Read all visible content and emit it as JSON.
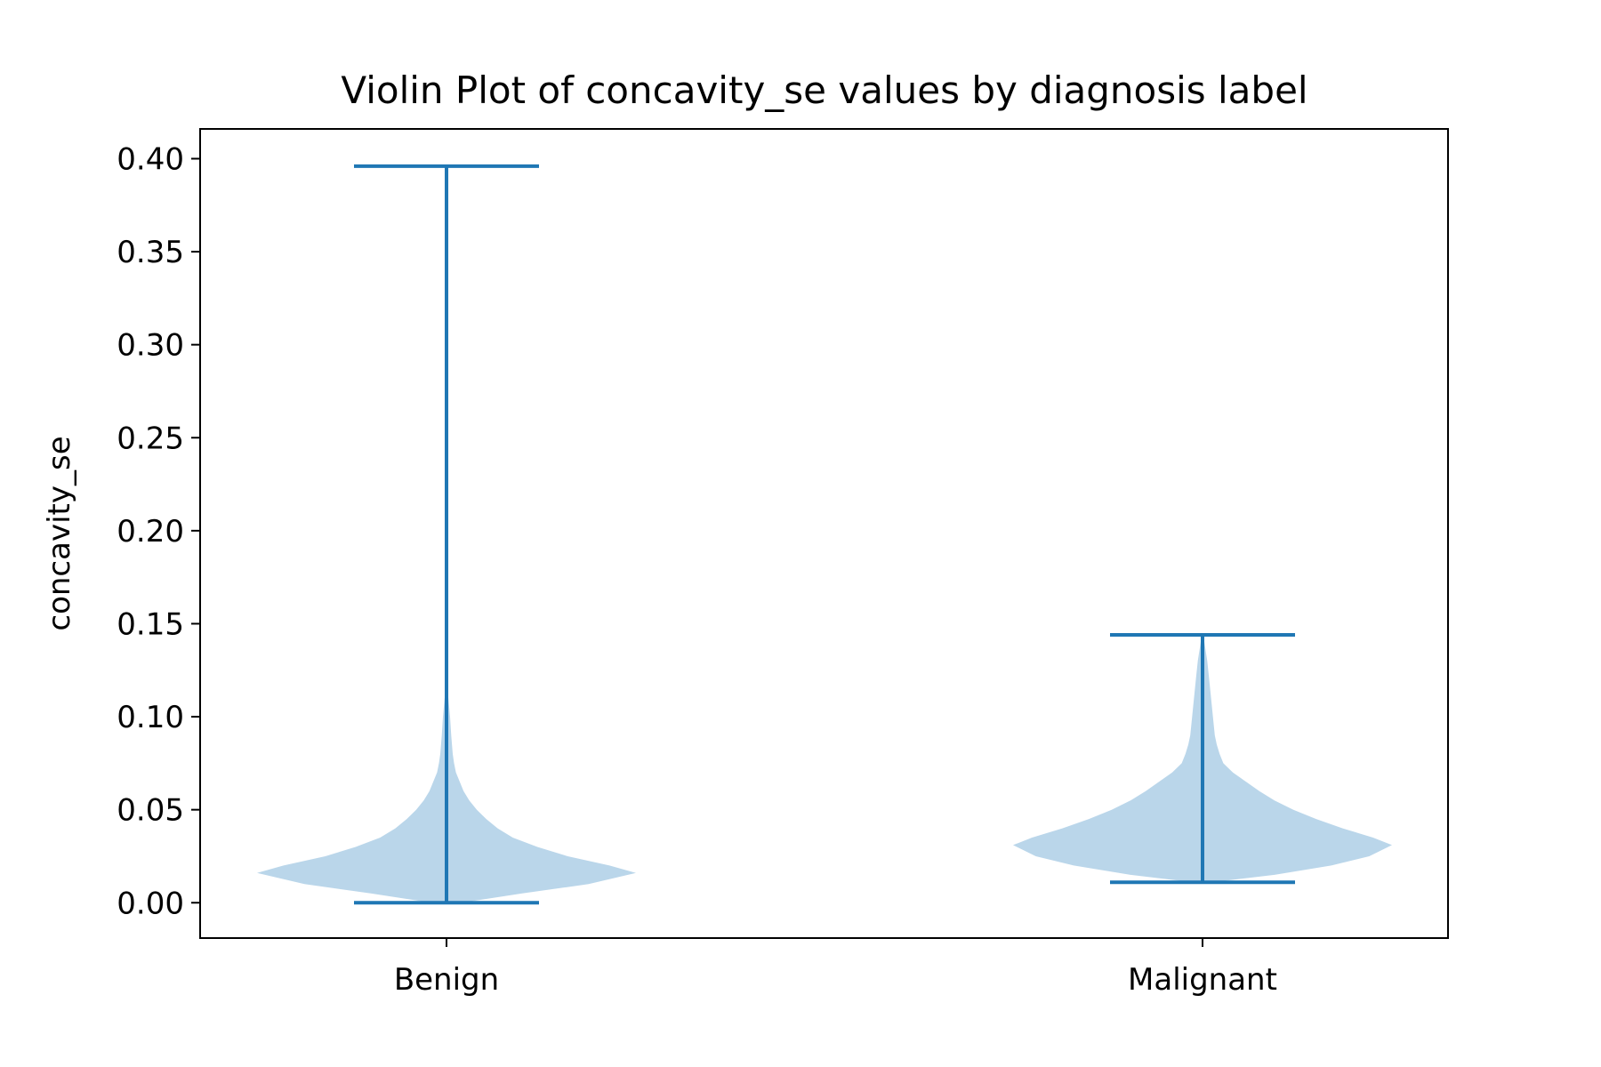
{
  "chart_data": {
    "type": "violin",
    "title": "Violin Plot of concavity_se values by diagnosis label",
    "xlabel": "",
    "ylabel": "concavity_se",
    "ylim": [
      -0.019,
      0.416
    ],
    "yticks": [
      "0.00",
      "0.05",
      "0.10",
      "0.15",
      "0.20",
      "0.25",
      "0.30",
      "0.35",
      "0.40"
    ],
    "categories": [
      "Benign",
      "Malignant"
    ],
    "grid": false,
    "colors": {
      "body": "#bad6ea",
      "line": "#1f77b4"
    },
    "series": [
      {
        "category": "Benign",
        "min": 0.0,
        "max": 0.396,
        "density": [
          [
            0.0,
            0.08
          ],
          [
            0.005,
            0.4
          ],
          [
            0.01,
            0.75
          ],
          [
            0.016,
            1.0
          ],
          [
            0.02,
            0.86
          ],
          [
            0.025,
            0.64
          ],
          [
            0.03,
            0.48
          ],
          [
            0.035,
            0.35
          ],
          [
            0.04,
            0.27
          ],
          [
            0.045,
            0.21
          ],
          [
            0.05,
            0.16
          ],
          [
            0.055,
            0.12
          ],
          [
            0.06,
            0.09
          ],
          [
            0.065,
            0.07
          ],
          [
            0.07,
            0.05
          ],
          [
            0.075,
            0.04
          ],
          [
            0.08,
            0.033
          ],
          [
            0.09,
            0.025
          ],
          [
            0.1,
            0.019
          ],
          [
            0.11,
            0.01
          ],
          [
            0.115,
            0.003
          ],
          [
            0.396,
            0.0
          ]
        ]
      },
      {
        "category": "Malignant",
        "min": 0.011,
        "max": 0.144,
        "density": [
          [
            0.011,
            0.05
          ],
          [
            0.015,
            0.38
          ],
          [
            0.02,
            0.68
          ],
          [
            0.025,
            0.88
          ],
          [
            0.031,
            1.0
          ],
          [
            0.035,
            0.9
          ],
          [
            0.04,
            0.74
          ],
          [
            0.045,
            0.6
          ],
          [
            0.05,
            0.48
          ],
          [
            0.055,
            0.38
          ],
          [
            0.06,
            0.3
          ],
          [
            0.065,
            0.23
          ],
          [
            0.07,
            0.16
          ],
          [
            0.075,
            0.11
          ],
          [
            0.08,
            0.09
          ],
          [
            0.085,
            0.075
          ],
          [
            0.09,
            0.065
          ],
          [
            0.1,
            0.055
          ],
          [
            0.11,
            0.045
          ],
          [
            0.12,
            0.035
          ],
          [
            0.13,
            0.025
          ],
          [
            0.14,
            0.01
          ],
          [
            0.144,
            0.003
          ]
        ]
      }
    ]
  }
}
